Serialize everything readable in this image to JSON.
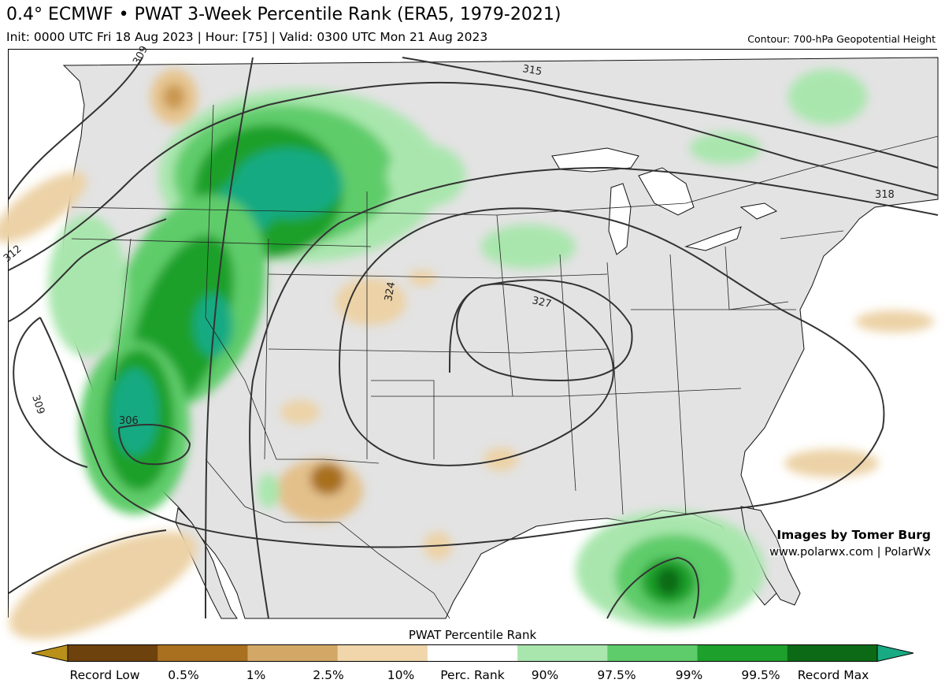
{
  "header": {
    "title": "0.4° ECMWF • PWAT 3-Week Percentile Rank (ERA5, 1979-2021)",
    "subtitle": "Init: 0000 UTC Fri 18 Aug 2023 | Hour: [75] | Valid: 0300 UTC Mon 21 Aug 2023",
    "contour_note": "Contour: 700-hPa Geopotential Height"
  },
  "map": {
    "contour_labels": [
      "309",
      "315",
      "318",
      "312",
      "324",
      "327",
      "309",
      "306"
    ],
    "credit_line1": "Images by Tomer Burg",
    "credit_line2": "www.polarwx.com | PolarWx",
    "colors": {
      "land": "#e3e3e3",
      "ocean": "#ffffff",
      "contour": "#333333",
      "border": "#000000"
    }
  },
  "colorbar": {
    "title": "PWAT Percentile Rank",
    "labels": [
      "Record Low",
      "0.5%",
      "1%",
      "2.5%",
      "10%",
      "Perc. Rank",
      "90%",
      "97.5%",
      "99%",
      "99.5%",
      "Record Max"
    ],
    "colors": [
      "#b8901a",
      "#6e420d",
      "#a8701f",
      "#d3a867",
      "#f0d6aa",
      "#ffffff",
      "#a9e6ad",
      "#5fcc6b",
      "#1ea02c",
      "#0c6a17",
      "#18aa82"
    ]
  }
}
